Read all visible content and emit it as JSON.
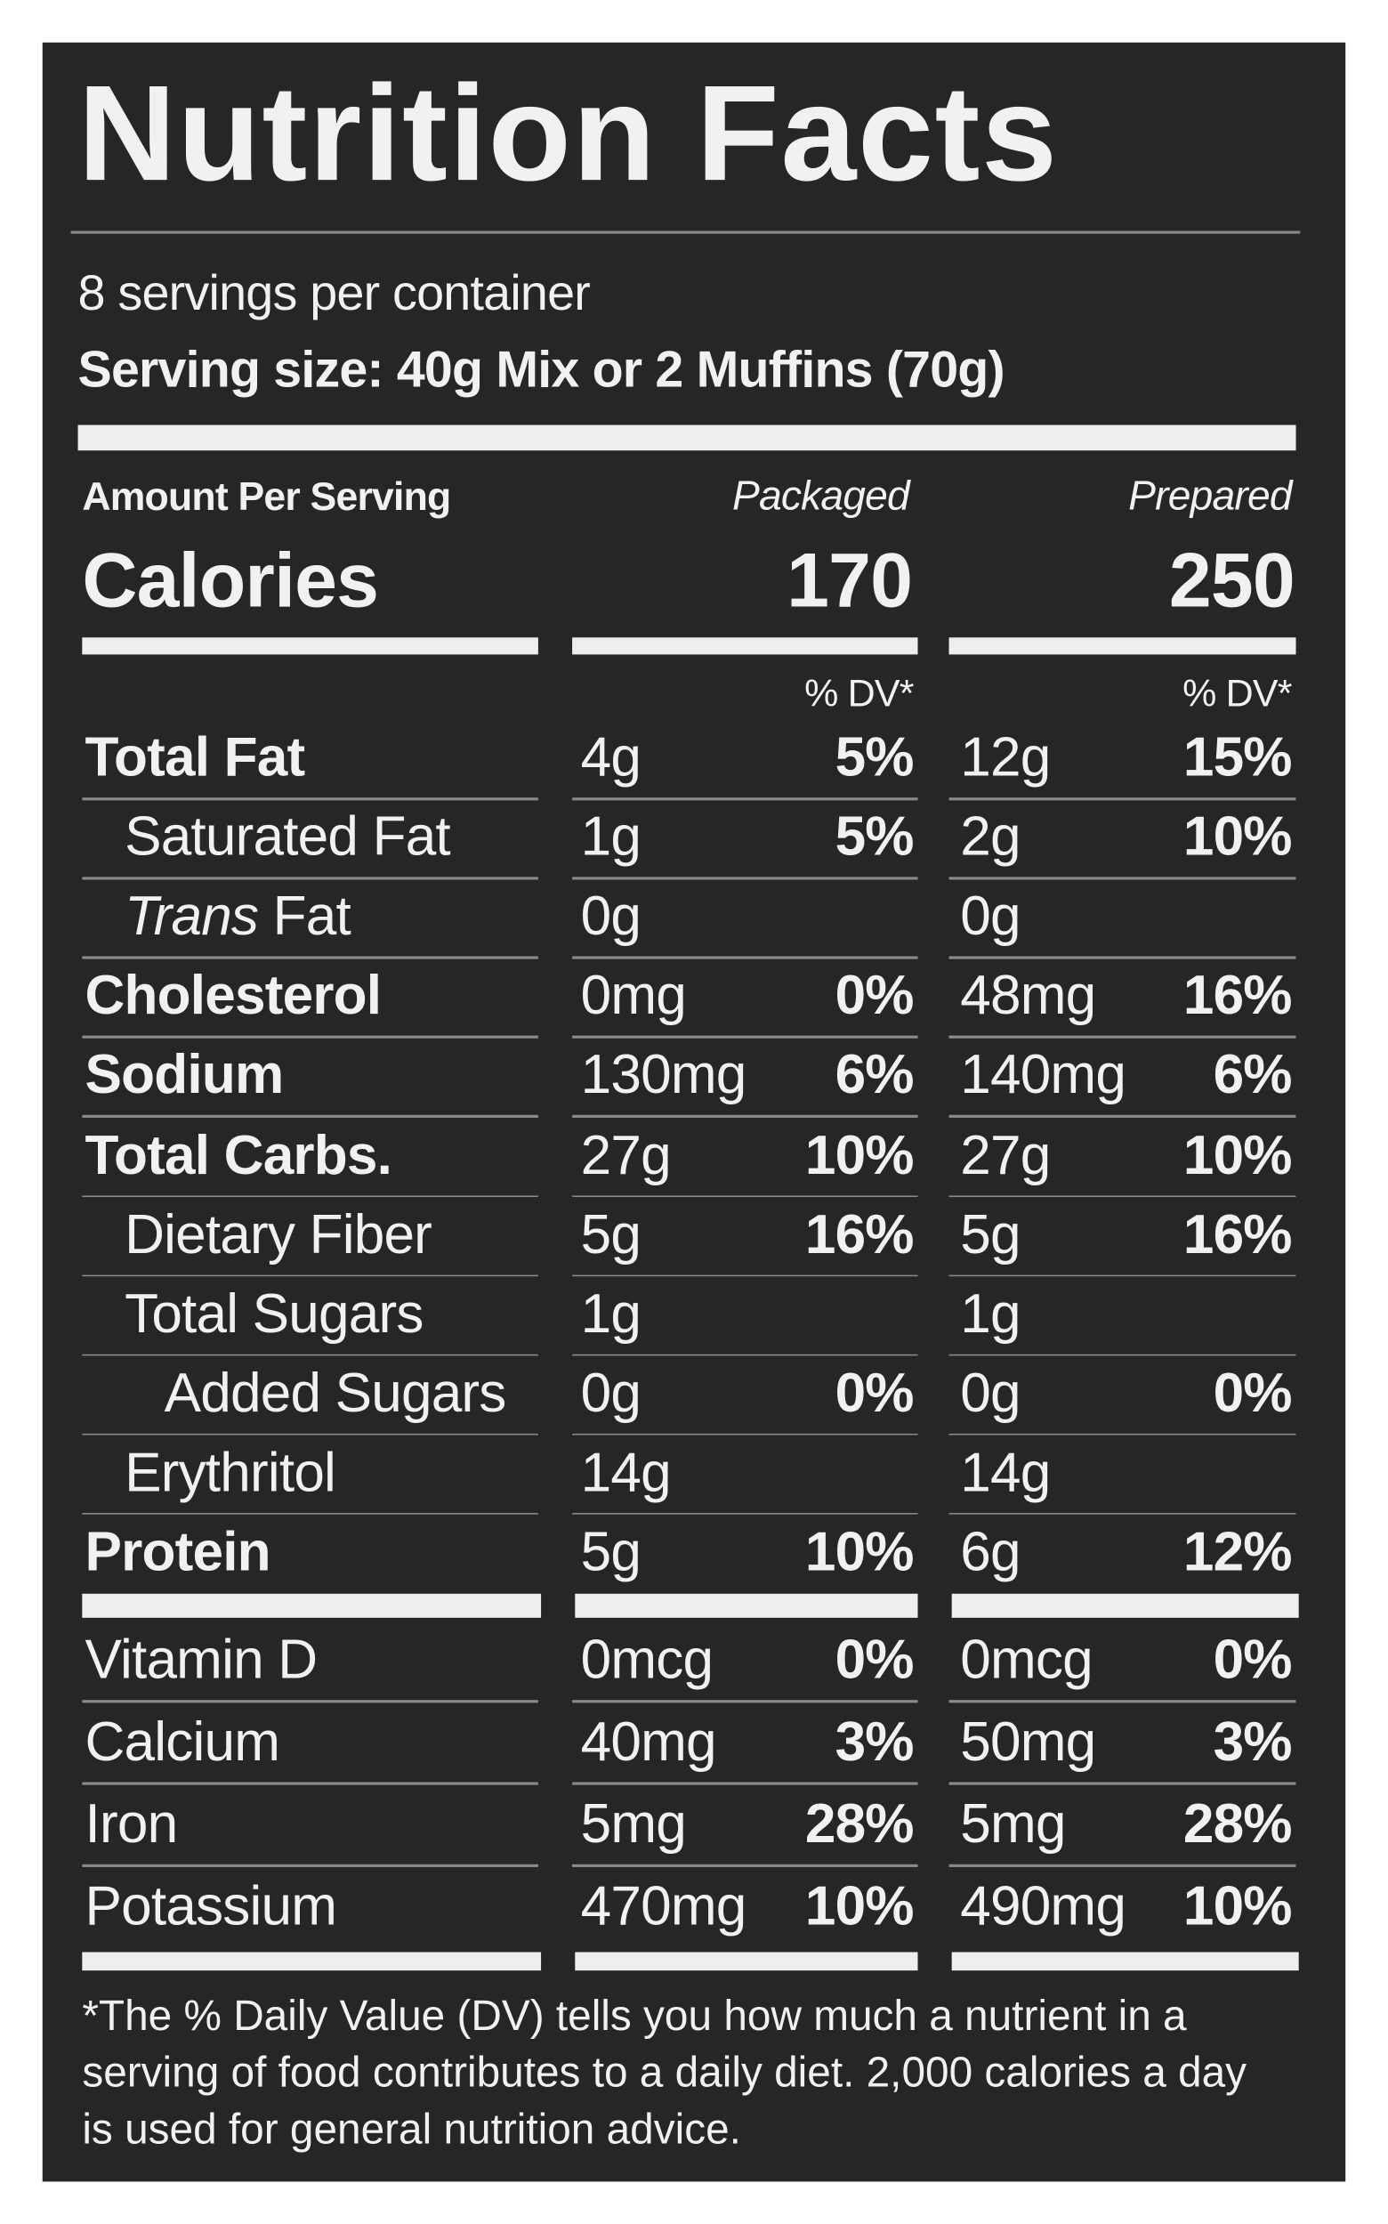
{
  "title": "Nutrition Facts",
  "servings": "8 servings per container",
  "serving_size": "Serving size: 40g Mix or 2 Muffins (70g)",
  "amount_per_serving": "Amount Per Serving",
  "columns": [
    "Packaged",
    "Prepared"
  ],
  "calories": {
    "label": "Calories",
    "values": [
      "170",
      "250"
    ]
  },
  "dv_header": "% DV*",
  "nutrients": [
    {
      "name": "Total Fat",
      "bold": true,
      "indent": 0,
      "packaged": [
        "4g",
        "5%"
      ],
      "prepared": [
        "12g",
        "15%"
      ]
    },
    {
      "name": "Saturated Fat",
      "bold": false,
      "indent": 1,
      "packaged": [
        "1g",
        "5%"
      ],
      "prepared": [
        "2g",
        "10%"
      ]
    },
    {
      "name": "Trans Fat",
      "bold": false,
      "indent": 1,
      "italic_first_word": true,
      "packaged": [
        "0g",
        null
      ],
      "prepared": [
        "0g",
        null
      ]
    },
    {
      "name": "Cholesterol",
      "bold": true,
      "indent": 0,
      "packaged": [
        "0mg",
        "0%"
      ],
      "prepared": [
        "48mg",
        "16%"
      ]
    },
    {
      "name": "Sodium",
      "bold": true,
      "indent": 0,
      "packaged": [
        "130mg",
        "6%"
      ],
      "prepared": [
        "140mg",
        "6%"
      ]
    },
    {
      "name": "Total Carbs.",
      "bold": true,
      "indent": 0,
      "packaged": [
        "27g",
        "10%"
      ],
      "prepared": [
        "27g",
        "10%"
      ]
    },
    {
      "name": "Dietary Fiber",
      "bold": false,
      "indent": 1,
      "packaged": [
        "5g",
        "16%"
      ],
      "prepared": [
        "5g",
        "16%"
      ]
    },
    {
      "name": "Total Sugars",
      "bold": false,
      "indent": 1,
      "packaged": [
        "1g",
        null
      ],
      "prepared": [
        "1g",
        null
      ]
    },
    {
      "name": "Added Sugars",
      "bold": false,
      "indent": 2,
      "packaged": [
        "0g",
        "0%"
      ],
      "prepared": [
        "0g",
        "0%"
      ]
    },
    {
      "name": "Erythritol",
      "bold": false,
      "indent": 1,
      "packaged": [
        "14g",
        null
      ],
      "prepared": [
        "14g",
        null
      ]
    },
    {
      "name": "Protein",
      "bold": true,
      "indent": 0,
      "packaged": [
        "5g",
        "10%"
      ],
      "prepared": [
        "6g",
        "12%"
      ]
    }
  ],
  "vitamins": [
    {
      "name": "Vitamin D",
      "packaged": [
        "0mcg",
        "0%"
      ],
      "prepared": [
        "0mcg",
        "0%"
      ]
    },
    {
      "name": "Calcium",
      "packaged": [
        "40mg",
        "3%"
      ],
      "prepared": [
        "50mg",
        "3%"
      ]
    },
    {
      "name": "Iron",
      "packaged": [
        "5mg",
        "28%"
      ],
      "prepared": [
        "5mg",
        "28%"
      ]
    },
    {
      "name": "Potassium",
      "packaged": [
        "470mg",
        "10%"
      ],
      "prepared": [
        "490mg",
        "10%"
      ]
    }
  ],
  "footnote": "*The % Daily Value (DV) tells you how much a nutrient in a serving of food contributes to a daily diet. 2,000 calories a day is used for general nutrition advice."
}
